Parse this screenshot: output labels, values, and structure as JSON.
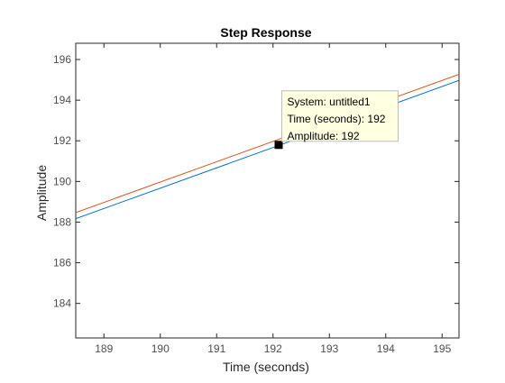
{
  "chart_data": {
    "type": "line",
    "title": "Step Response",
    "xlabel": "Time (seconds)",
    "ylabel": "Amplitude",
    "xlim": [
      188.5,
      195.3
    ],
    "ylim": [
      182.3,
      196.8
    ],
    "xticks": [
      189,
      190,
      191,
      192,
      193,
      194,
      195
    ],
    "yticks": [
      184,
      186,
      188,
      190,
      192,
      194,
      196
    ],
    "grid": false,
    "series": [
      {
        "color": "#D95319",
        "x": [
          188.5,
          195.3
        ],
        "y": [
          188.47,
          195.27
        ]
      },
      {
        "color": "#0072BD",
        "x": [
          188.5,
          195.3
        ],
        "y": [
          188.17,
          194.97
        ]
      }
    ],
    "datatip": {
      "x": 192.1,
      "y": 191.8,
      "lines": [
        "System: untitled1",
        "Time (seconds): 192",
        "Amplitude: 192"
      ]
    }
  }
}
